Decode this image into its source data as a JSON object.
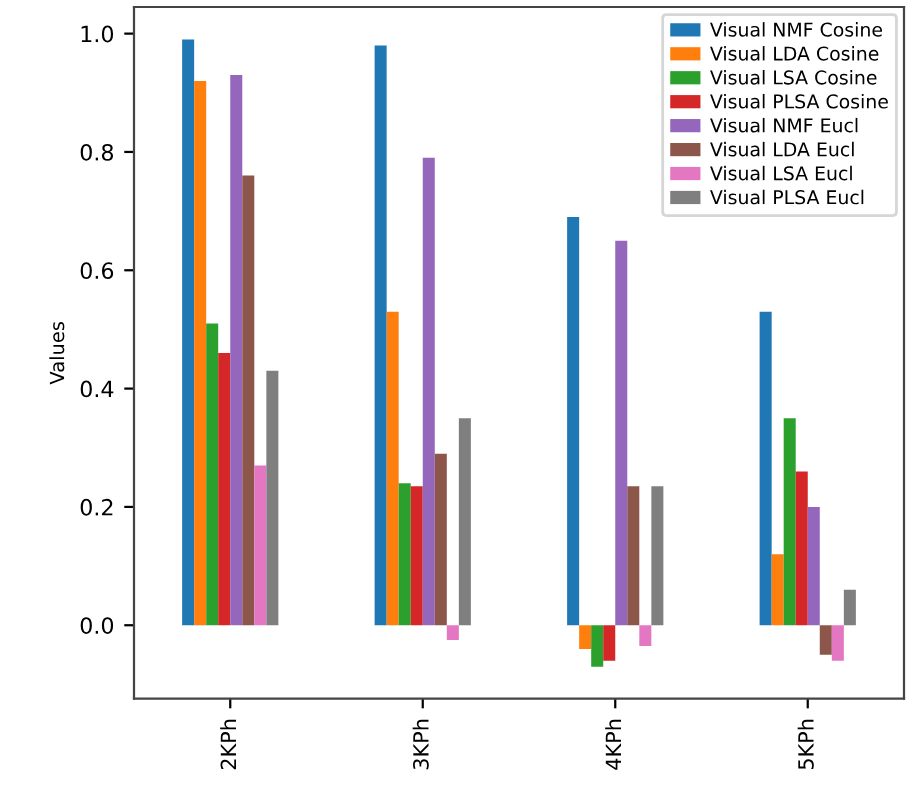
{
  "chart_data": {
    "type": "bar",
    "categories": [
      "2KPh",
      "3KPh",
      "4KPh",
      "5KPh"
    ],
    "series": [
      {
        "name": "Visual NMF Cosine",
        "color": "#1f77b4",
        "values": [
          0.99,
          0.98,
          0.69,
          0.53
        ]
      },
      {
        "name": "Visual LDA Cosine",
        "color": "#ff7f0e",
        "values": [
          0.92,
          0.53,
          -0.04,
          0.12
        ]
      },
      {
        "name": "Visual LSA Cosine",
        "color": "#2ca02c",
        "values": [
          0.51,
          0.24,
          -0.07,
          0.35
        ]
      },
      {
        "name": "Visual PLSA Cosine",
        "color": "#d62728",
        "values": [
          0.46,
          0.235,
          -0.06,
          0.26
        ]
      },
      {
        "name": "Visual NMF Eucl",
        "color": "#9467bd",
        "values": [
          0.93,
          0.79,
          0.65,
          0.2
        ]
      },
      {
        "name": "Visual LDA Eucl",
        "color": "#8c564b",
        "values": [
          0.76,
          0.29,
          0.235,
          -0.05
        ]
      },
      {
        "name": "Visual LSA Eucl",
        "color": "#e377c2",
        "values": [
          0.27,
          -0.025,
          -0.035,
          -0.06
        ]
      },
      {
        "name": "Visual PLSA Eucl",
        "color": "#7f7f7f",
        "values": [
          0.43,
          0.35,
          0.235,
          0.06
        ]
      }
    ],
    "ylabel": "Values",
    "ylim": [
      -0.124,
      1.045
    ],
    "yticks": [
      {
        "value": 0.0,
        "label": "0.0"
      },
      {
        "value": 0.2,
        "label": "0.2"
      },
      {
        "value": 0.4,
        "label": "0.4"
      },
      {
        "value": 0.6,
        "label": "0.6"
      },
      {
        "value": 0.8,
        "label": "0.8"
      },
      {
        "value": 1.0,
        "label": "1.0"
      }
    ],
    "legend": "top right"
  }
}
